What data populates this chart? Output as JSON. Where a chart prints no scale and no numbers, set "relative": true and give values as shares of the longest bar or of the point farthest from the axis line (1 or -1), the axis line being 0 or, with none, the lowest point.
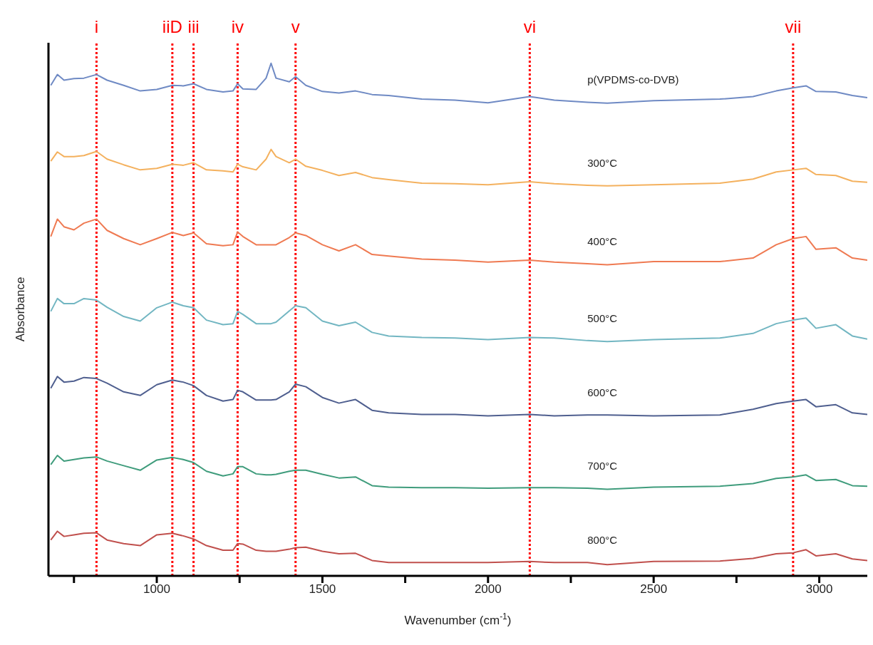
{
  "chart_data": {
    "type": "line",
    "xlabel": "Wavenumber (cm$^{-1}$)",
    "ylabel": "Absorbance",
    "relative": true,
    "legend": false,
    "grid": false,
    "marker": "none",
    "line_style": "solid",
    "xlim": [
      673,
      3145
    ],
    "xticks": [
      {
        "value": 750,
        "label": null
      },
      1000,
      {
        "value": 1250,
        "label": null
      },
      1500,
      {
        "value": 1750,
        "label": null
      },
      2000,
      {
        "value": 2250,
        "label": null
      },
      2500,
      {
        "value": 2750,
        "label": null
      },
      3000
    ],
    "x": [
      680,
      700,
      720,
      750,
      780,
      818,
      850,
      900,
      950,
      1000,
      1047,
      1080,
      1111,
      1150,
      1200,
      1230,
      1244,
      1260,
      1300,
      1330,
      1345,
      1360,
      1400,
      1419,
      1450,
      1500,
      1550,
      1600,
      1650,
      1700,
      1800,
      1900,
      2000,
      2126,
      2200,
      2300,
      2360,
      2500,
      2700,
      2800,
      2870,
      2921,
      2960,
      2990,
      3050,
      3100,
      3145
    ],
    "series": [
      {
        "name": "p(VPDMS-co-DVB)",
        "color": "#6f8ac4",
        "values": [
          0.957,
          0.978,
          0.967,
          0.97,
          0.971,
          0.978,
          0.967,
          0.957,
          0.946,
          0.949,
          0.957,
          0.956,
          0.96,
          0.949,
          0.944,
          0.946,
          0.96,
          0.95,
          0.949,
          0.971,
          1.0,
          0.971,
          0.964,
          0.974,
          0.957,
          0.945,
          0.942,
          0.946,
          0.939,
          0.937,
          0.93,
          0.928,
          0.923,
          0.935,
          0.928,
          0.924,
          0.922,
          0.927,
          0.93,
          0.935,
          0.946,
          0.952,
          0.956,
          0.945,
          0.944,
          0.937,
          0.933
        ]
      },
      {
        "name": "300°C",
        "color": "#f4b15e",
        "values": [
          0.809,
          0.827,
          0.818,
          0.818,
          0.82,
          0.828,
          0.813,
          0.802,
          0.792,
          0.795,
          0.803,
          0.801,
          0.806,
          0.792,
          0.79,
          0.788,
          0.803,
          0.798,
          0.792,
          0.813,
          0.832,
          0.818,
          0.806,
          0.813,
          0.799,
          0.791,
          0.781,
          0.787,
          0.777,
          0.773,
          0.766,
          0.765,
          0.763,
          0.769,
          0.765,
          0.762,
          0.761,
          0.763,
          0.766,
          0.774,
          0.788,
          0.792,
          0.795,
          0.783,
          0.781,
          0.77,
          0.768
        ]
      },
      {
        "name": "400°C",
        "color": "#ef7a52",
        "values": [
          0.662,
          0.696,
          0.681,
          0.675,
          0.688,
          0.696,
          0.674,
          0.658,
          0.646,
          0.658,
          0.67,
          0.664,
          0.669,
          0.648,
          0.644,
          0.646,
          0.671,
          0.662,
          0.646,
          0.646,
          0.646,
          0.646,
          0.66,
          0.669,
          0.664,
          0.646,
          0.634,
          0.646,
          0.627,
          0.624,
          0.618,
          0.616,
          0.612,
          0.616,
          0.612,
          0.609,
          0.607,
          0.613,
          0.613,
          0.62,
          0.646,
          0.658,
          0.662,
          0.637,
          0.64,
          0.62,
          0.616
        ]
      },
      {
        "name": "500°C",
        "color": "#72b6c2",
        "values": [
          0.516,
          0.541,
          0.531,
          0.531,
          0.541,
          0.538,
          0.524,
          0.506,
          0.497,
          0.523,
          0.534,
          0.527,
          0.523,
          0.499,
          0.49,
          0.492,
          0.516,
          0.51,
          0.492,
          0.492,
          0.492,
          0.495,
          0.517,
          0.527,
          0.523,
          0.497,
          0.488,
          0.495,
          0.475,
          0.468,
          0.465,
          0.464,
          0.461,
          0.465,
          0.464,
          0.459,
          0.457,
          0.461,
          0.464,
          0.473,
          0.492,
          0.499,
          0.503,
          0.483,
          0.49,
          0.468,
          0.462
        ]
      },
      {
        "name": "600°C",
        "color": "#4f5f8f",
        "values": [
          0.366,
          0.389,
          0.378,
          0.38,
          0.387,
          0.385,
          0.376,
          0.359,
          0.352,
          0.373,
          0.382,
          0.378,
          0.371,
          0.352,
          0.341,
          0.344,
          0.362,
          0.359,
          0.343,
          0.343,
          0.343,
          0.344,
          0.359,
          0.374,
          0.369,
          0.348,
          0.337,
          0.344,
          0.323,
          0.318,
          0.315,
          0.315,
          0.312,
          0.315,
          0.312,
          0.314,
          0.314,
          0.312,
          0.314,
          0.325,
          0.336,
          0.341,
          0.344,
          0.33,
          0.334,
          0.318,
          0.315
        ]
      },
      {
        "name": "700°C",
        "color": "#3f9c7c",
        "values": [
          0.217,
          0.235,
          0.224,
          0.227,
          0.23,
          0.232,
          0.224,
          0.215,
          0.206,
          0.226,
          0.231,
          0.227,
          0.221,
          0.204,
          0.195,
          0.199,
          0.213,
          0.213,
          0.199,
          0.197,
          0.197,
          0.198,
          0.204,
          0.206,
          0.206,
          0.198,
          0.191,
          0.193,
          0.176,
          0.173,
          0.172,
          0.172,
          0.171,
          0.172,
          0.172,
          0.171,
          0.169,
          0.173,
          0.175,
          0.18,
          0.19,
          0.193,
          0.197,
          0.186,
          0.188,
          0.176,
          0.175
        ]
      },
      {
        "name": "800°C",
        "color": "#c0504d",
        "values": [
          0.07,
          0.087,
          0.077,
          0.08,
          0.083,
          0.084,
          0.07,
          0.063,
          0.059,
          0.08,
          0.083,
          0.078,
          0.072,
          0.059,
          0.05,
          0.05,
          0.063,
          0.062,
          0.05,
          0.048,
          0.048,
          0.048,
          0.052,
          0.055,
          0.056,
          0.048,
          0.043,
          0.044,
          0.03,
          0.026,
          0.026,
          0.026,
          0.026,
          0.028,
          0.026,
          0.026,
          0.022,
          0.028,
          0.029,
          0.034,
          0.043,
          0.045,
          0.051,
          0.039,
          0.043,
          0.033,
          0.03
        ]
      }
    ],
    "ref_lines": [
      {
        "axis": "x",
        "value": 818,
        "label": "i",
        "color": "#ff0000",
        "line_style": "dotted"
      },
      {
        "axis": "x",
        "value": 1047,
        "label": "iiD",
        "color": "#ff0000",
        "line_style": "dotted"
      },
      {
        "axis": "x",
        "value": 1111,
        "label": "iii",
        "color": "#ff0000",
        "line_style": "dotted"
      },
      {
        "axis": "x",
        "value": 1244,
        "label": "iv",
        "color": "#ff0000",
        "line_style": "dotted"
      },
      {
        "axis": "x",
        "value": 1419,
        "label": "v",
        "color": "#ff0000",
        "line_style": "dotted"
      },
      {
        "axis": "x",
        "value": 2126,
        "label": "vi",
        "color": "#ff0000",
        "line_style": "dotted"
      },
      {
        "axis": "x",
        "value": 2921,
        "label": "vii",
        "color": "#ff0000",
        "line_style": "dotted"
      }
    ]
  }
}
